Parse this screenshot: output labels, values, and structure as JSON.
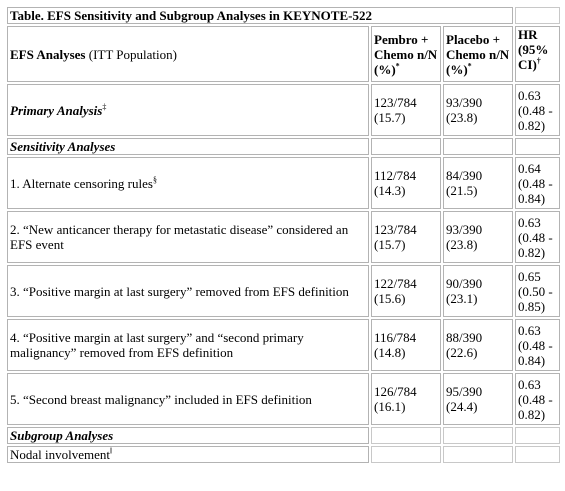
{
  "table": {
    "title": "Table. EFS Sensitivity and Subgroup Analyses in KEYNOTE-522",
    "header": {
      "analyses_label_bold": "EFS Analyses",
      "analyses_label_rest": " (ITT Population)",
      "col_pembro": "Pembro + Chemo n/N (%)",
      "col_pembro_sup": "*",
      "col_placebo": "Placebo + Chemo n/N (%)",
      "col_placebo_sup": "*",
      "col_hr": "HR (95% CI)",
      "col_hr_sup": "†"
    },
    "primary": {
      "label": "Primary Analysis",
      "sup": "‡",
      "pembro": "123/784 (15.7)",
      "placebo": "93/390 (23.8)",
      "hr": "0.63 (0.48 - 0.82)"
    },
    "sensitivity_heading": "Sensitivity Analyses",
    "sensitivity_rows": [
      {
        "label": "1. Alternate censoring rules",
        "sup": "§",
        "pembro": "112/784 (14.3)",
        "placebo": "84/390 (21.5)",
        "hr": "0.64 (0.48 - 0.84)"
      },
      {
        "label": "2. “New anticancer therapy for metastatic disease” considered an EFS event",
        "sup": "",
        "pembro": "123/784 (15.7)",
        "placebo": "93/390 (23.8)",
        "hr": "0.63 (0.48 - 0.82)"
      },
      {
        "label": "3. “Positive margin at last surgery” removed from EFS definition",
        "sup": "",
        "pembro": "122/784 (15.6)",
        "placebo": "90/390 (23.1)",
        "hr": "0.65 (0.50 - 0.85)"
      },
      {
        "label": "4. “Positive margin at last surgery” and “second primary malignancy” removed from EFS definition",
        "sup": "",
        "pembro": "116/784 (14.8)",
        "placebo": "88/390 (22.6)",
        "hr": "0.63 (0.48 - 0.84)"
      },
      {
        "label": "5. “Second breast malignancy” included in EFS definition",
        "sup": "",
        "pembro": "126/784 (16.1)",
        "placebo": "95/390 (24.4)",
        "hr": "0.63 (0.48 - 0.82)"
      }
    ],
    "subgroup_heading": "Subgroup Analyses",
    "nodal": {
      "label": "Nodal involvement",
      "sup": "ǁ"
    }
  }
}
